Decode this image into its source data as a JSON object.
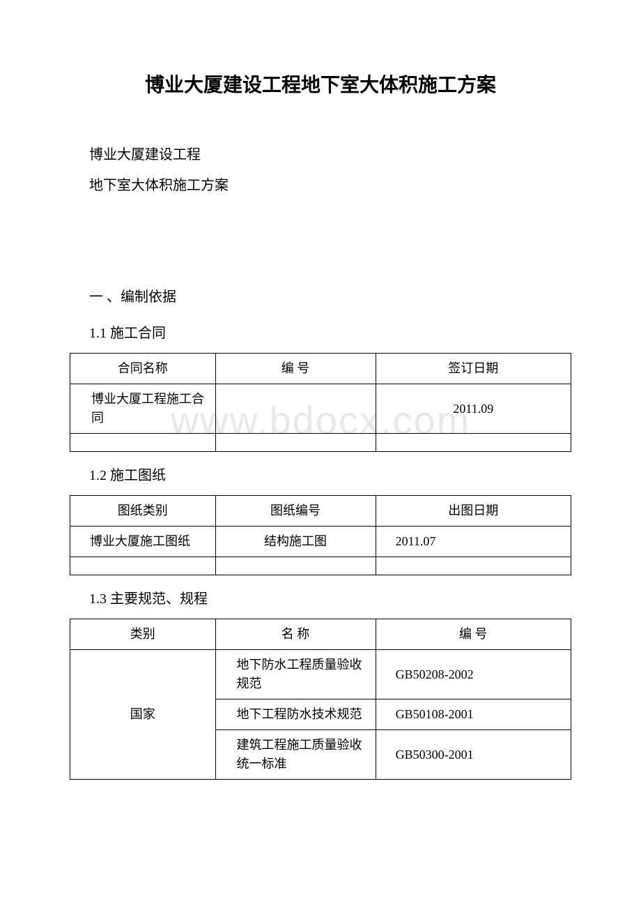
{
  "watermark": "www.bdocx.com",
  "title": "博业大厦建设工程地下室大体积施工方案",
  "subtitle1": "博业大厦建设工程",
  "subtitle2": "地下室大体积施工方案",
  "section1": {
    "heading": "一 、编制依据",
    "sub1": {
      "heading": "1.1 施工合同",
      "table": {
        "headers": [
          "合同名称",
          "编 号",
          "签订日期"
        ],
        "rows": [
          [
            "博业大厦工程施工合同",
            "",
            "2011.09"
          ],
          [
            "",
            "",
            ""
          ]
        ]
      }
    },
    "sub2": {
      "heading": "1.2 施工图纸",
      "table": {
        "headers": [
          "图纸类别",
          "图纸编号",
          "出图日期"
        ],
        "rows": [
          [
            "博业大厦施工图纸",
            "结构施工图",
            "2011.07"
          ],
          [
            "",
            "",
            ""
          ]
        ]
      }
    },
    "sub3": {
      "heading": "1.3 主要规范、规程",
      "table": {
        "headers": [
          "类别",
          "名 称",
          "编 号"
        ],
        "category": "国家",
        "rows": [
          [
            "地下防水工程质量验收规范",
            "GB50208-2002"
          ],
          [
            "地下工程防水技术规范",
            "GB50108-2001"
          ],
          [
            "建筑工程施工质量验收统一标准",
            "GB50300-2001"
          ]
        ]
      }
    }
  }
}
